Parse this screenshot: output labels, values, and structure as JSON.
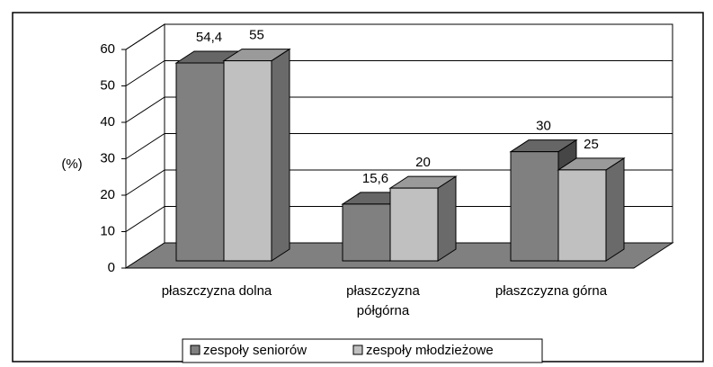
{
  "chart_data": {
    "type": "bar3d",
    "y_label": "(%)",
    "categories": [
      "płaszczyzna dolna",
      "płaszczyzna półgórna",
      "płaszczyzna górna"
    ],
    "series": [
      {
        "name": "zespoły seniorów",
        "color": "#808080",
        "values": [
          54.4,
          15.6,
          30
        ],
        "value_labels": [
          "54,4",
          "15,6",
          "30"
        ]
      },
      {
        "name": "zespoły młodzieżowe",
        "color": "#c0c0c0",
        "values": [
          55,
          20,
          25
        ]
      }
    ],
    "ylim": [
      0,
      60
    ],
    "yticks": [
      0,
      10,
      20,
      30,
      40,
      50,
      60
    ],
    "grid": true,
    "legend": "bottom"
  }
}
